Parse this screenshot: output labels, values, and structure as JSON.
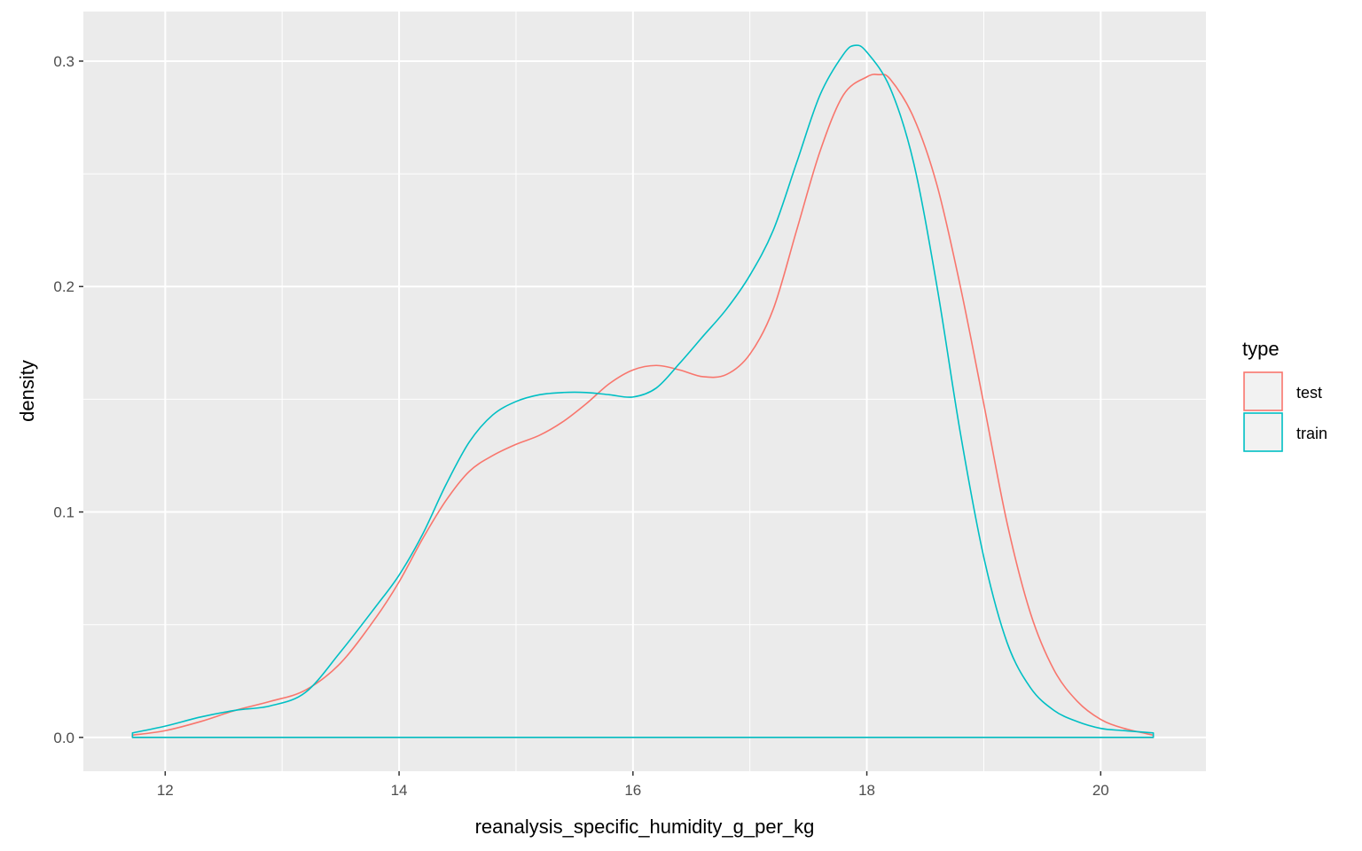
{
  "chart_data": {
    "type": "line",
    "subtype": "density",
    "title": "",
    "xlabel": "reanalysis_specific_humidity_g_per_kg",
    "ylabel": "density",
    "xlim": [
      11.3,
      20.9
    ],
    "ylim": [
      -0.015,
      0.322
    ],
    "xticks": [
      12,
      14,
      16,
      18,
      20
    ],
    "xtick_labels": [
      "12",
      "14",
      "16",
      "18",
      "20"
    ],
    "yticks": [
      0.0,
      0.1,
      0.2,
      0.3
    ],
    "ytick_labels": [
      "0.0",
      "0.1",
      "0.2",
      "0.3"
    ],
    "grid": true,
    "legend": {
      "title": "type",
      "position": "right"
    },
    "series": [
      {
        "name": "test",
        "color": "#F8766D",
        "x": [
          11.72,
          12.0,
          12.3,
          12.6,
          12.9,
          13.2,
          13.5,
          13.8,
          14.0,
          14.2,
          14.4,
          14.6,
          14.8,
          15.0,
          15.2,
          15.4,
          15.6,
          15.8,
          16.0,
          16.2,
          16.4,
          16.6,
          16.8,
          17.0,
          17.2,
          17.4,
          17.6,
          17.8,
          18.0,
          18.1,
          18.2,
          18.4,
          18.6,
          18.8,
          19.0,
          19.2,
          19.4,
          19.6,
          19.8,
          20.0,
          20.2,
          20.45
        ],
        "y": [
          0.001,
          0.003,
          0.007,
          0.012,
          0.016,
          0.021,
          0.033,
          0.053,
          0.069,
          0.088,
          0.105,
          0.118,
          0.125,
          0.13,
          0.134,
          0.14,
          0.148,
          0.157,
          0.163,
          0.165,
          0.163,
          0.16,
          0.161,
          0.17,
          0.19,
          0.225,
          0.26,
          0.285,
          0.293,
          0.294,
          0.292,
          0.275,
          0.245,
          0.2,
          0.148,
          0.095,
          0.055,
          0.03,
          0.016,
          0.008,
          0.004,
          0.001
        ]
      },
      {
        "name": "train",
        "color": "#00BFC4",
        "x": [
          11.72,
          12.0,
          12.3,
          12.6,
          12.9,
          13.2,
          13.5,
          13.8,
          14.0,
          14.2,
          14.4,
          14.6,
          14.8,
          15.0,
          15.2,
          15.4,
          15.6,
          15.8,
          16.0,
          16.2,
          16.4,
          16.6,
          16.8,
          17.0,
          17.2,
          17.4,
          17.6,
          17.8,
          17.9,
          18.0,
          18.2,
          18.4,
          18.6,
          18.8,
          19.0,
          19.2,
          19.4,
          19.6,
          19.8,
          20.0,
          20.2,
          20.45
        ],
        "y": [
          0.002,
          0.005,
          0.009,
          0.012,
          0.014,
          0.02,
          0.038,
          0.058,
          0.072,
          0.09,
          0.112,
          0.131,
          0.143,
          0.149,
          0.152,
          0.153,
          0.153,
          0.152,
          0.151,
          0.155,
          0.166,
          0.178,
          0.19,
          0.205,
          0.225,
          0.255,
          0.285,
          0.303,
          0.307,
          0.304,
          0.288,
          0.255,
          0.2,
          0.135,
          0.08,
          0.042,
          0.022,
          0.012,
          0.007,
          0.004,
          0.003,
          0.002
        ]
      }
    ]
  }
}
